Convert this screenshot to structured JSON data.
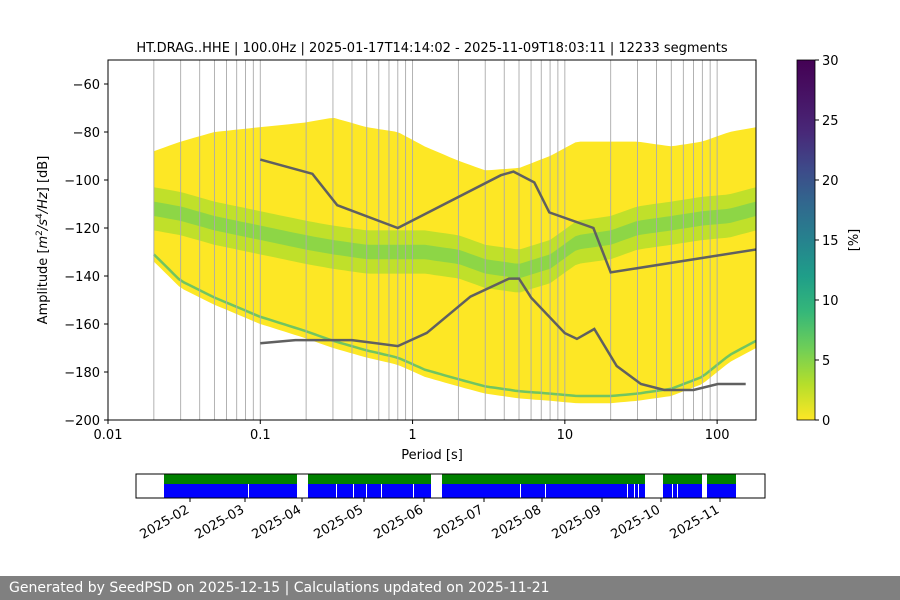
{
  "chart_data": {
    "type": "heatmap",
    "title": "HT.DRAG..HHE | 100.0Hz | 2025-01-17T14:14:02 - 2025-11-09T18:03:11 | 12233 segments",
    "xlabel": "Period [s]",
    "ylabel": "Amplitude [m²/s⁴/Hz] [dB]",
    "xscale": "log",
    "xlim": [
      0.01,
      180
    ],
    "ylim": [
      -200,
      -50
    ],
    "xticks": [
      {
        "value": 0.01,
        "label": "0.01"
      },
      {
        "value": 0.1,
        "label": "0.1"
      },
      {
        "value": 1,
        "label": "1"
      },
      {
        "value": 10,
        "label": "10"
      },
      {
        "value": 100,
        "label": "100"
      }
    ],
    "yticks": [
      -60,
      -80,
      -100,
      -120,
      -140,
      -160,
      -180,
      -200
    ],
    "grid": "vertical lines at periods",
    "colorbar": {
      "label": "[%]",
      "range": [
        0,
        30
      ],
      "ticks": [
        0,
        5,
        10,
        15,
        20,
        25,
        30
      ]
    },
    "density_band": {
      "periods": [
        0.02,
        0.03,
        0.05,
        0.1,
        0.2,
        0.3,
        0.5,
        0.8,
        1.2,
        2,
        3,
        5,
        8,
        12,
        20,
        30,
        50,
        80,
        120,
        180
      ],
      "upper_db": [
        -88,
        -84,
        -80,
        -78,
        -76,
        -74,
        -78,
        -80,
        -86,
        -92,
        -96,
        -95,
        -90,
        -84,
        -84,
        -84,
        -86,
        -84,
        -80,
        -78
      ],
      "lower_db": [
        -134,
        -145,
        -152,
        -160,
        -166,
        -170,
        -174,
        -177,
        -182,
        -186,
        -189,
        -191,
        -192,
        -193,
        -193,
        -192,
        -190,
        -185,
        -176,
        -170
      ],
      "mode_db": [
        -112,
        -114,
        -118,
        -122,
        -126,
        -128,
        -130,
        -130,
        -130,
        -132,
        -136,
        -138,
        -134,
        -126,
        -124,
        -120,
        -118,
        -116,
        -115,
        -112
      ]
    },
    "nhnm": {
      "periods": [
        0.1,
        0.22,
        0.32,
        0.8,
        3.8,
        4.6,
        6.3,
        7.9,
        15.4,
        20,
        354
      ],
      "db": [
        -91.5,
        -97.4,
        -110.5,
        -120.0,
        -98.0,
        -96.5,
        -101.0,
        -113.5,
        -120.0,
        -138.5,
        -126.0
      ]
    },
    "nlnm": {
      "periods": [
        0.1,
        0.17,
        0.4,
        0.8,
        1.24,
        2.4,
        4.3,
        5.0,
        6.0,
        10.0,
        12.0,
        15.6,
        21.9,
        31.6,
        45,
        70,
        101,
        154
      ],
      "db": [
        -168.0,
        -166.7,
        -166.7,
        -169.2,
        -163.7,
        -148.6,
        -141.1,
        -141.1,
        -149.0,
        -163.8,
        -166.2,
        -162.1,
        -177.5,
        -185.0,
        -187.5,
        -187.5,
        -185.0,
        -185.0
      ]
    },
    "coverage": {
      "xlabels": [
        "2025-02",
        "2025-03",
        "2025-04",
        "2025-05",
        "2025-06",
        "2025-07",
        "2025-08",
        "2025-09",
        "2025-10",
        "2025-11"
      ],
      "legend_colors": {
        "processed": "#008000",
        "available": "#0000ff"
      }
    }
  },
  "footer": {
    "text": "Generated by SeedPSD on 2025-12-15 | Calculations updated on 2025-11-21"
  }
}
